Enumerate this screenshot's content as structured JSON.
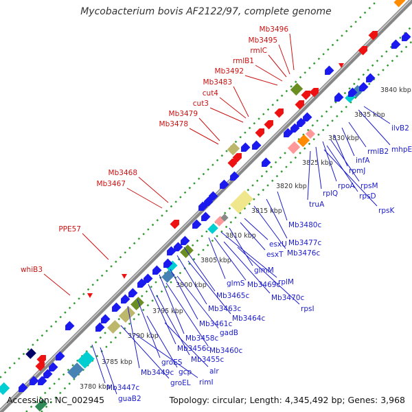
{
  "title": "Mycobacterium bovis AF2122/97, complete genome",
  "footer": {
    "accession": "Accession: NC_002945",
    "stats": "Topology: circular; Length: 4,345,492 bp; Genes: 3,968"
  },
  "colors": {
    "backbone": "#888888",
    "dots": "#2f9a2f",
    "gene_arrow": "#1a1aee",
    "rna_arrow": "#ee1111",
    "label_blue": "#1a1acc",
    "label_red": "#cc1111",
    "tick_text": "#333333"
  },
  "scale_ticks": [
    "3780 kbp",
    "3785 kbp",
    "3790 kbp",
    "3795 kbp",
    "3800 kbp",
    "3805 kbp",
    "3810 kbp",
    "3815 kbp",
    "3820 kbp",
    "3825 kbp",
    "3830 kbp",
    "3835 kbp",
    "3840 kbp"
  ],
  "labels_red": [
    "Mb3496",
    "Mb3495",
    "rmlC",
    "rmlB1",
    "Mb3492",
    "Mb3483",
    "cut4",
    "cut3",
    "Mb3479",
    "Mb3478",
    "Mb3468",
    "Mb3467",
    "PPE57",
    "whiB3"
  ],
  "labels_blue": [
    "ilvB2",
    "mhpE",
    "rmlB2",
    "infA",
    "rpmJ",
    "rpsM",
    "rpoA",
    "rpsD",
    "rplQ",
    "rpsK",
    "truA",
    "Mb3480c",
    "Mb3477c",
    "Mb3476c",
    "esxU",
    "esxT",
    "glmM",
    "rplM",
    "glmS",
    "Mb3469c",
    "Mb3470c",
    "rpsI",
    "Mb3465c",
    "Mb3463c",
    "Mb3464c",
    "Mb3461c",
    "gadB",
    "Mb3458c",
    "Mb3460c",
    "Mb3456c",
    "Mb3455c",
    "groES",
    "Mb3449c",
    "gcp",
    "alr",
    "groEL",
    "rimI",
    "Mb3447c",
    "guaB2"
  ]
}
